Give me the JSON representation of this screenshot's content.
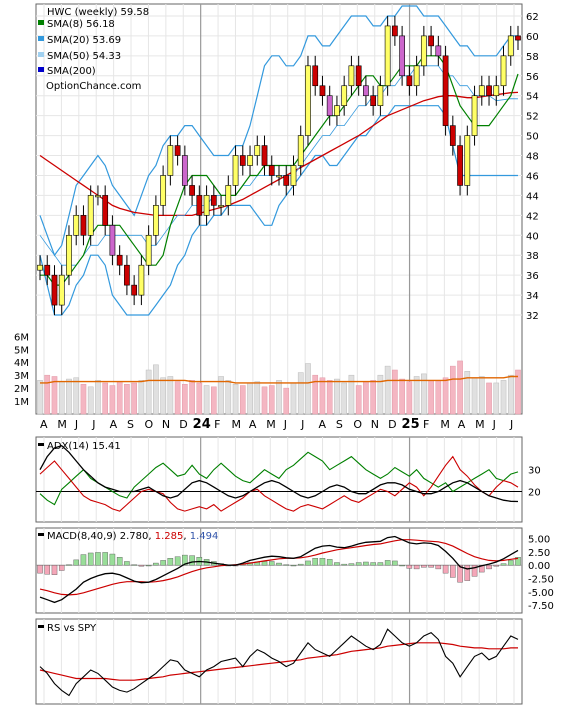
{
  "chart_data": [
    {
      "type": "candlestick",
      "title": "HWC (weekly) 59.58",
      "legend": [
        {
          "label": "SMA(8) 56.18",
          "color": "#008000"
        },
        {
          "label": "SMA(20) 53.69",
          "color": "#3399dd"
        },
        {
          "label": "SMA(50) 54.33",
          "color": "#9fd0f0"
        },
        {
          "label": "SMA(200)",
          "color": "#0000cc"
        }
      ],
      "watermark": "OptionChance.com",
      "y_ticks": [
        "62",
        "60",
        "58",
        "56",
        "54",
        "52",
        "50",
        "48",
        "46",
        "44",
        "42",
        "40",
        "38",
        "36",
        "34",
        "32"
      ],
      "ylim": [
        30.5,
        63.2
      ],
      "volume_ticks": [
        "6M",
        "5M",
        "4M",
        "3M",
        "2M",
        "1M"
      ],
      "x_labels": [
        "A",
        "M",
        "J",
        "J",
        "A",
        "S",
        "O",
        "N",
        "D",
        "24",
        "F",
        "M",
        "A",
        "M",
        "J",
        "J",
        "A",
        "S",
        "O",
        "N",
        "D",
        "25",
        "F",
        "M",
        "A",
        "M",
        "J",
        "J"
      ],
      "close": [
        37,
        36,
        33,
        36,
        40,
        42,
        40,
        44,
        44,
        41,
        38,
        37,
        35,
        34,
        37,
        40,
        43,
        46,
        49,
        48,
        45,
        44,
        42,
        44,
        43,
        43,
        45,
        48,
        47,
        48,
        49,
        47,
        46,
        46,
        45,
        47,
        50,
        57,
        55,
        54,
        52,
        53,
        55,
        57,
        55,
        54,
        53,
        55,
        61,
        60,
        56,
        55,
        57,
        60,
        59,
        58,
        51,
        49,
        45,
        50,
        54,
        55,
        54,
        55,
        58,
        60,
        59.58
      ],
      "sma8": [
        36,
        36,
        35,
        35,
        36,
        37,
        38,
        40,
        41,
        41,
        41,
        41,
        40,
        39,
        38,
        37,
        37,
        38,
        41,
        43,
        45,
        46,
        46,
        46,
        45,
        44,
        44,
        44,
        45,
        46,
        46,
        47,
        47,
        47,
        47,
        47,
        48,
        49,
        50,
        51,
        52,
        52,
        53,
        54,
        55,
        56,
        56,
        55,
        55,
        56,
        57,
        57,
        57,
        58,
        58,
        58,
        57,
        55,
        53,
        52,
        51,
        51,
        51,
        52,
        53,
        54,
        56.18
      ],
      "sma20": [
        40,
        39,
        38,
        37,
        37,
        37,
        38,
        39,
        39,
        40,
        40,
        40,
        40,
        40,
        40,
        39,
        39,
        40,
        41,
        42,
        42,
        43,
        43,
        43,
        44,
        44,
        44,
        44,
        45,
        45,
        46,
        46,
        46,
        46,
        46,
        46,
        47,
        48,
        49,
        50,
        50,
        51,
        51,
        52,
        53,
        53,
        54,
        54,
        55,
        55,
        56,
        56,
        57,
        57,
        57,
        57,
        56,
        56,
        55,
        55,
        54,
        54,
        54,
        53.5,
        53.6,
        53.7,
        53.69
      ],
      "sma50": [
        48,
        47.5,
        47,
        46.5,
        46,
        45.5,
        45,
        44.5,
        44,
        43.5,
        43,
        42.7,
        42.5,
        42.3,
        42.2,
        42.1,
        42,
        42,
        42,
        42,
        42,
        42,
        42.2,
        42.4,
        42.6,
        42.8,
        43,
        43.3,
        43.6,
        44,
        44.4,
        44.8,
        45.2,
        45.6,
        46,
        46.4,
        46.8,
        47.2,
        47.6,
        48,
        48.4,
        48.8,
        49.2,
        49.6,
        50,
        50.5,
        51,
        51.5,
        52,
        52.3,
        52.6,
        52.9,
        53.2,
        53.5,
        53.7,
        53.9,
        54,
        54,
        53.9,
        53.8,
        53.8,
        53.9,
        54,
        54.1,
        54.2,
        54.3,
        54.33
      ],
      "bb_upper": [
        42,
        40,
        38,
        39,
        42,
        45,
        46,
        47,
        48,
        47,
        45,
        44,
        43,
        42,
        44,
        46,
        47,
        49,
        50,
        50,
        51,
        51,
        50,
        49,
        48,
        48,
        48,
        49,
        49,
        51,
        54,
        57,
        58,
        58,
        57,
        57,
        58,
        60,
        60,
        59,
        59,
        60,
        61,
        62,
        62,
        62,
        61,
        61,
        62,
        62,
        63,
        63,
        63,
        62,
        62,
        62,
        61,
        60,
        59,
        59,
        58,
        58,
        58,
        58,
        59,
        60,
        60
      ],
      "bb_lower": [
        38,
        35,
        32,
        32,
        33,
        35,
        36,
        38,
        38,
        37,
        34,
        33,
        32,
        32,
        32,
        32,
        33,
        34,
        35,
        37,
        38,
        40,
        41,
        41,
        42,
        42,
        43,
        43,
        43,
        43,
        42,
        41,
        41,
        43,
        44,
        45,
        46,
        47,
        48,
        48,
        47,
        47,
        48,
        49,
        50,
        50,
        51,
        52,
        52,
        53,
        53,
        53,
        53,
        53,
        53,
        53,
        52,
        49,
        46,
        46,
        46,
        46,
        46,
        46,
        46,
        46,
        46
      ],
      "volume_m": [
        2.6,
        3.0,
        2.9,
        2.5,
        2.7,
        2.8,
        2.3,
        2.1,
        2.6,
        2.4,
        2.2,
        2.5,
        2.3,
        2.4,
        2.6,
        3.4,
        3.8,
        2.8,
        2.9,
        2.5,
        2.3,
        2.6,
        2.4,
        2.2,
        2.1,
        2.9,
        2.6,
        2.3,
        2.2,
        2.4,
        2.5,
        2.1,
        2.2,
        2.6,
        2.0,
        2.4,
        3.2,
        3.9,
        3.0,
        2.8,
        2.6,
        2.7,
        2.4,
        3.0,
        2.2,
        2.5,
        2.6,
        3.0,
        3.7,
        3.4,
        2.7,
        2.5,
        2.9,
        3.1,
        2.6,
        2.6,
        2.8,
        3.7,
        4.1,
        3.3,
        2.8,
        2.9,
        2.4,
        2.4,
        2.6,
        3.0,
        3.4
      ],
      "volume_avg_m": [
        2.4,
        2.4,
        2.5,
        2.5,
        2.5,
        2.5,
        2.5,
        2.5,
        2.5,
        2.5,
        2.5,
        2.5,
        2.5,
        2.5,
        2.5,
        2.6,
        2.6,
        2.6,
        2.6,
        2.6,
        2.6,
        2.5,
        2.5,
        2.5,
        2.5,
        2.5,
        2.5,
        2.4,
        2.4,
        2.4,
        2.4,
        2.4,
        2.4,
        2.4,
        2.4,
        2.4,
        2.4,
        2.4,
        2.5,
        2.5,
        2.5,
        2.5,
        2.5,
        2.5,
        2.5,
        2.5,
        2.5,
        2.5,
        2.6,
        2.6,
        2.6,
        2.6,
        2.6,
        2.6,
        2.6,
        2.6,
        2.6,
        2.7,
        2.7,
        2.8,
        2.8,
        2.8,
        2.8,
        2.8,
        2.8,
        2.9,
        2.9
      ]
    },
    {
      "type": "line",
      "title": "ADX(14) 15.41",
      "y_ticks": [
        "30",
        "20"
      ],
      "ylim": [
        6,
        45
      ],
      "adx": [
        30,
        36,
        40,
        41,
        38,
        34,
        30,
        27,
        24,
        22,
        21,
        20,
        20,
        20,
        21,
        22,
        20,
        18,
        17,
        18,
        21,
        24,
        25,
        24,
        22,
        20,
        18,
        17,
        18,
        20,
        22,
        24,
        25,
        24,
        22,
        20,
        18,
        17,
        18,
        20,
        22,
        23,
        22,
        20,
        19,
        19,
        21,
        23,
        24,
        24,
        23,
        21,
        20,
        19,
        19,
        20,
        22,
        24,
        25,
        24,
        22,
        20,
        18,
        17,
        16,
        15.5,
        15.41
      ],
      "plus_di": [
        19,
        16,
        14,
        21,
        24,
        27,
        30,
        26,
        24,
        22,
        20,
        18,
        17,
        22,
        25,
        28,
        31,
        33,
        30,
        27,
        28,
        32,
        28,
        26,
        30,
        33,
        30,
        27,
        25,
        24,
        27,
        30,
        28,
        26,
        30,
        32,
        35,
        38,
        36,
        34,
        30,
        32,
        34,
        36,
        33,
        30,
        28,
        26,
        28,
        31,
        29,
        27,
        30,
        26,
        24,
        22,
        24,
        20,
        22,
        24,
        26,
        28,
        30,
        26,
        25,
        28,
        29
      ],
      "minus_di": [
        28,
        31,
        34,
        30,
        26,
        22,
        18,
        16,
        15,
        14,
        12,
        11,
        14,
        17,
        20,
        21,
        20,
        19,
        15,
        12,
        11,
        12,
        13,
        12,
        14,
        11,
        13,
        15,
        17,
        20,
        21,
        18,
        16,
        14,
        12,
        11,
        13,
        14,
        13,
        12,
        14,
        16,
        18,
        16,
        15,
        17,
        19,
        21,
        20,
        18,
        21,
        24,
        22,
        18,
        22,
        27,
        32,
        36,
        30,
        27,
        23,
        20,
        18,
        22,
        25,
        24,
        22
      ]
    },
    {
      "type": "line",
      "title": "MACD(8,40,9) 2.780, 1.285, 1.494",
      "signal_label": "1.285",
      "hist_label": "1.494",
      "y_ticks": [
        "5.00",
        "2.50",
        "0.00",
        "-2.50",
        "-5.00",
        "-7.50"
      ],
      "ylim": [
        -9,
        7
      ],
      "macd": [
        -6,
        -6.5,
        -7,
        -6.5,
        -5.5,
        -4.5,
        -3.2,
        -2.5,
        -2,
        -1.6,
        -1.5,
        -1.8,
        -2.4,
        -3,
        -3.3,
        -3.2,
        -2.7,
        -2,
        -1.3,
        -0.6,
        0.2,
        0.6,
        0.7,
        0.6,
        0.4,
        0.2,
        0,
        0,
        0.4,
        0.9,
        1.2,
        1.5,
        1.7,
        1.6,
        1.4,
        1.3,
        1.6,
        2.4,
        3.2,
        3.6,
        3.7,
        3.4,
        3.3,
        3.6,
        4,
        4.3,
        4.4,
        4.5,
        5.2,
        5.4,
        4.8,
        4.2,
        4,
        4.2,
        4.1,
        3.7,
        2.6,
        1.3,
        -0.3,
        -0.7,
        -0.5,
        -0.1,
        0.2,
        0.6,
        1.2,
        2,
        2.78
      ],
      "signal": [
        -4.5,
        -4.8,
        -5.2,
        -5.5,
        -5.6,
        -5.5,
        -5.2,
        -4.8,
        -4.4,
        -4,
        -3.6,
        -3.3,
        -3.1,
        -3.1,
        -3.1,
        -3.2,
        -3.1,
        -2.9,
        -2.6,
        -2.2,
        -1.7,
        -1.2,
        -0.8,
        -0.5,
        -0.3,
        -0.1,
        0,
        0.1,
        0.2,
        0.4,
        0.6,
        0.8,
        1,
        1.2,
        1.3,
        1.3,
        1.4,
        1.6,
        1.9,
        2.3,
        2.6,
        2.9,
        3.1,
        3.3,
        3.5,
        3.7,
        3.9,
        4,
        4.3,
        4.6,
        4.8,
        4.8,
        4.7,
        4.6,
        4.5,
        4.4,
        4.1,
        3.6,
        2.9,
        2.2,
        1.6,
        1.2,
        0.9,
        0.8,
        0.9,
        1.1,
        1.285
      ],
      "histogram": [
        -1.5,
        -1.7,
        -1.8,
        -1,
        0.1,
        1,
        2,
        2.3,
        2.4,
        2.4,
        2.1,
        1.5,
        0.7,
        0.1,
        -0.2,
        0,
        0.4,
        0.9,
        1.3,
        1.6,
        1.9,
        1.8,
        1.5,
        1.1,
        0.7,
        0.3,
        0,
        -0.1,
        0.2,
        0.5,
        0.6,
        0.7,
        0.7,
        0.4,
        0.1,
        0,
        0.2,
        0.8,
        1.3,
        1.3,
        1.1,
        0.5,
        0.2,
        0.3,
        0.5,
        0.6,
        0.5,
        0.5,
        0.9,
        0.8,
        0,
        -0.6,
        -0.7,
        -0.4,
        -0.4,
        -0.7,
        -1.5,
        -2.3,
        -3.2,
        -2.9,
        -2.1,
        -1.3,
        -0.7,
        -0.2,
        0.3,
        0.9,
        1.494
      ]
    },
    {
      "type": "line",
      "title": "RS vs SPY",
      "rs": [
        52,
        48,
        42,
        38,
        35,
        42,
        46,
        50,
        48,
        44,
        40,
        38,
        37,
        39,
        42,
        45,
        48,
        52,
        56,
        55,
        50,
        48,
        46,
        50,
        52,
        55,
        56,
        57,
        52,
        58,
        62,
        60,
        57,
        55,
        52,
        54,
        60,
        66,
        62,
        60,
        58,
        62,
        66,
        70,
        67,
        64,
        62,
        65,
        74,
        70,
        66,
        64,
        66,
        70,
        72,
        68,
        58,
        54,
        46,
        52,
        58,
        60,
        56,
        58,
        64,
        70,
        68
      ],
      "rs_avg": [
        50,
        49,
        48,
        47,
        46,
        45,
        45,
        45,
        45,
        45,
        44.5,
        44,
        44,
        44,
        44.5,
        45,
        45.5,
        46,
        47,
        47.5,
        48,
        48.5,
        49,
        49.5,
        50,
        50.5,
        51,
        51.5,
        52,
        52.5,
        53,
        53.5,
        54,
        54.5,
        55,
        55.5,
        56,
        57,
        57.5,
        58,
        58.5,
        59,
        60,
        61,
        61.5,
        62,
        62.5,
        63,
        64,
        64.5,
        65,
        65.5,
        66,
        66,
        66,
        66,
        65.5,
        65,
        64,
        63.5,
        63,
        63,
        62.5,
        62.5,
        62.5,
        63,
        63
      ]
    }
  ]
}
